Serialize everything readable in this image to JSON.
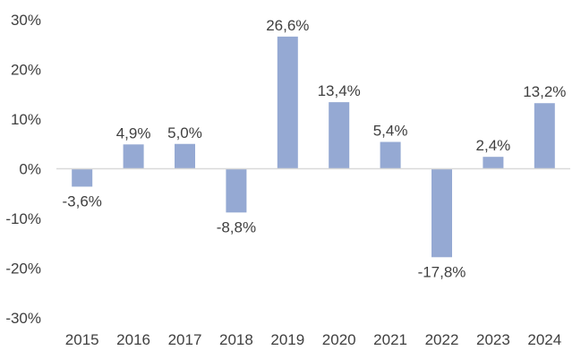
{
  "chart_data": {
    "type": "bar",
    "title": "",
    "xlabel": "",
    "ylabel": "",
    "categories": [
      "2015",
      "2016",
      "2017",
      "2018",
      "2019",
      "2020",
      "2021",
      "2022",
      "2023",
      "2024"
    ],
    "values": [
      -3.6,
      4.9,
      5.0,
      -8.8,
      26.6,
      13.4,
      5.4,
      -17.8,
      2.4,
      13.2
    ],
    "data_labels": [
      "-3,6%",
      "4,9%",
      "5,0%",
      "-8,8%",
      "26,6%",
      "13,4%",
      "5,4%",
      "-17,8%",
      "2,4%",
      "13,2%"
    ],
    "ylim": [
      -30,
      30
    ],
    "yticks": [
      30,
      20,
      10,
      0,
      -10,
      -20,
      -30
    ],
    "ytick_labels": [
      "30%",
      "20%",
      "10%",
      "0%",
      "-10%",
      "-20%",
      "-30%"
    ],
    "grid": false,
    "legend": "none",
    "bar_color": "#95A9D3",
    "axis_color": "#D9D9D9",
    "text_color": "#404040"
  }
}
